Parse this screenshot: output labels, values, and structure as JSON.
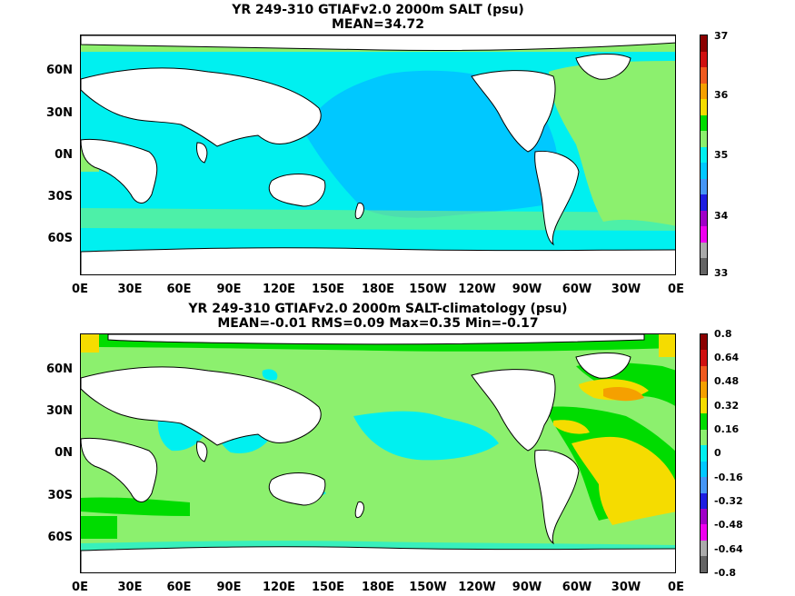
{
  "panels": [
    {
      "title1": "YR 249-310 GTIAFv2.0 2000m SALT (psu)",
      "title2": "MEAN=34.72",
      "colorbar": {
        "labels": [
          "37",
          "36",
          "35",
          "34",
          "33"
        ],
        "colors": [
          "#8b0000",
          "#d01010",
          "#f05a1e",
          "#f5a000",
          "#f5dc00",
          "#00dc00",
          "#8cf06e",
          "#00f0f0",
          "#00c8ff",
          "#4696f5",
          "#1e1ee1",
          "#a000c8",
          "#f000f0",
          "#aaaaaa",
          "#646464"
        ]
      }
    },
    {
      "title1": "YR 249-310 GTIAFv2.0 2000m SALT-climatology (psu)",
      "title2": "MEAN=-0.01   RMS=0.09   Max=0.35   Min=-0.17",
      "colorbar": {
        "labels": [
          "0.8",
          "0.64",
          "0.48",
          "0.32",
          "0.16",
          "0",
          "-0.16",
          "-0.32",
          "-0.48",
          "-0.64",
          "-0.8"
        ],
        "colors": [
          "#8b0000",
          "#d01010",
          "#f05a1e",
          "#f5a000",
          "#f5dc00",
          "#00dc00",
          "#8cf06e",
          "#00f0f0",
          "#00c8ff",
          "#4696f5",
          "#1e1ee1",
          "#a000c8",
          "#f000f0",
          "#aaaaaa",
          "#646464"
        ]
      }
    }
  ],
  "axes": {
    "x_ticks": [
      "0E",
      "30E",
      "60E",
      "90E",
      "120E",
      "150E",
      "180E",
      "150W",
      "120W",
      "90W",
      "60W",
      "30W",
      "0E"
    ],
    "y_ticks": [
      "60N",
      "30N",
      "0N",
      "30S",
      "60S"
    ]
  }
}
